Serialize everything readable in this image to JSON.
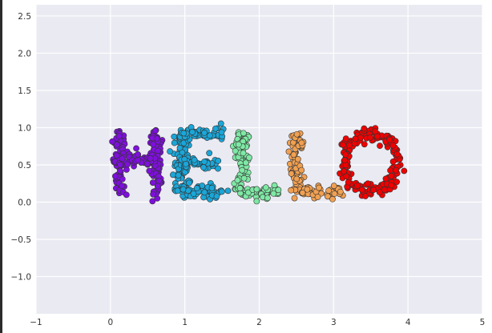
{
  "chart_data": {
    "type": "scatter",
    "title": "",
    "xlabel": "",
    "ylabel": "",
    "xlim": [
      -1,
      5
    ],
    "ylim": [
      -1.5,
      2.65
    ],
    "xticks": [
      "−1",
      "0",
      "1",
      "2",
      "3",
      "4",
      "5"
    ],
    "xtick_values": [
      -1,
      0,
      1,
      2,
      3,
      4,
      5
    ],
    "yticks": [
      "2.5",
      "2.0",
      "1.5",
      "1.0",
      "0.5",
      "0.0",
      "−0.5",
      "−1.0"
    ],
    "ytick_values": [
      2.5,
      2.0,
      1.5,
      1.0,
      0.5,
      0.0,
      -0.5,
      -1.0
    ],
    "grid": true,
    "background": "#eaeaf2",
    "series": [
      {
        "letter": "H",
        "color": "#7f0fdc",
        "strokes": [
          [
            [
              0.12,
              0.12
            ],
            [
              0.12,
              0.92
            ]
          ],
          [
            [
              0.62,
              0.12
            ],
            [
              0.62,
              0.92
            ]
          ],
          [
            [
              0.12,
              0.55
            ],
            [
              0.62,
              0.55
            ]
          ]
        ]
      },
      {
        "letter": "E",
        "color": "#1aa6d8",
        "strokes": [
          [
            [
              0.95,
              0.12
            ],
            [
              0.95,
              0.92
            ]
          ],
          [
            [
              0.95,
              0.92
            ],
            [
              1.5,
              0.92
            ]
          ],
          [
            [
              0.95,
              0.52
            ],
            [
              1.4,
              0.52
            ]
          ],
          [
            [
              0.95,
              0.14
            ],
            [
              1.5,
              0.14
            ]
          ]
        ]
      },
      {
        "letter": "L",
        "color": "#7ee8a4",
        "strokes": [
          [
            [
              1.75,
              0.12
            ],
            [
              1.75,
              0.92
            ]
          ],
          [
            [
              1.75,
              0.14
            ],
            [
              2.25,
              0.14
            ]
          ]
        ]
      },
      {
        "letter": "L",
        "color": "#f0a052",
        "strokes": [
          [
            [
              2.5,
              0.12
            ],
            [
              2.5,
              0.92
            ]
          ],
          [
            [
              2.5,
              0.14
            ],
            [
              3.05,
              0.14
            ]
          ]
        ]
      },
      {
        "letter": "O",
        "color": "#f00000",
        "ellipse": {
          "cx": 3.5,
          "cy": 0.53,
          "rx": 0.36,
          "ry": 0.38
        }
      }
    ]
  }
}
